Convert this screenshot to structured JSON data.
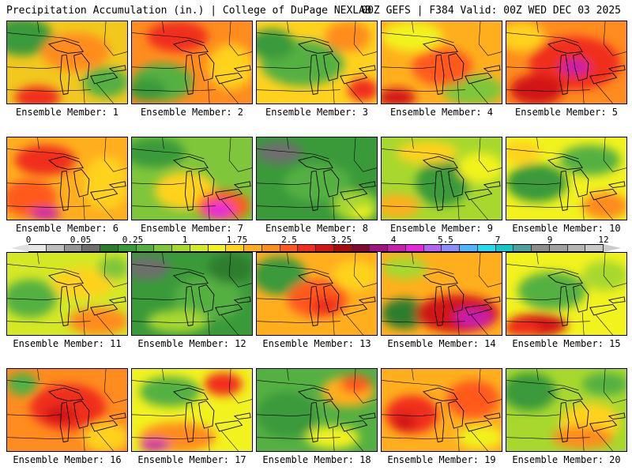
{
  "header": {
    "left_title": "Precipitation Accumulation (in.) | College of DuPage NEXLAB",
    "right_title": "00Z GEFS | F384 Valid: 00Z WED DEC 03 2025"
  },
  "colorbar": {
    "labels": [
      "0",
      "0.05",
      "0.25",
      "1",
      "1.75",
      "2.5",
      "3.25",
      "4",
      "5.5",
      "7",
      "9",
      "12"
    ],
    "colors": [
      "#e6e6e6",
      "#bdbdbd",
      "#969696",
      "#6e6e6e",
      "#2d7d2d",
      "#3a9a3a",
      "#55b043",
      "#7fc63a",
      "#a8d82e",
      "#d4e826",
      "#f2f21e",
      "#ffd21e",
      "#ffaf1e",
      "#ff8c1e",
      "#ff5a1e",
      "#f02d1e",
      "#d21414",
      "#aa0a0a",
      "#820a32",
      "#a0147d",
      "#c81eaf",
      "#e628dc",
      "#b464f0",
      "#8c8cfa",
      "#50b4ff",
      "#28dcf0",
      "#14c8c8",
      "#50a0a0",
      "#8c8c8c",
      "#a0a0a0",
      "#b4b4b4",
      "#c8c8c8"
    ]
  },
  "panels": [
    {
      "label": "Ensemble Member: 1",
      "base": "#f2c81e",
      "blobs": [
        [
          "#3a9a3a",
          20,
          20,
          40,
          25
        ],
        [
          "#55b043",
          130,
          80,
          30,
          20
        ],
        [
          "#ff8c1e",
          90,
          40,
          45,
          25
        ],
        [
          "#f02d1e",
          40,
          100,
          30,
          15
        ]
      ]
    },
    {
      "label": "Ensemble Member: 2",
      "base": "#ff8c1e",
      "blobs": [
        [
          "#55b043",
          40,
          80,
          40,
          25
        ],
        [
          "#3a9a3a",
          20,
          90,
          25,
          15
        ],
        [
          "#f02d1e",
          60,
          20,
          40,
          20
        ],
        [
          "#ffd21e",
          130,
          60,
          30,
          30
        ]
      ]
    },
    {
      "label": "Ensemble Member: 3",
      "base": "#ffd21e",
      "blobs": [
        [
          "#55b043",
          60,
          55,
          55,
          30
        ],
        [
          "#3a9a3a",
          20,
          30,
          30,
          20
        ],
        [
          "#ff8c1e",
          120,
          20,
          30,
          20
        ],
        [
          "#f02d1e",
          140,
          90,
          20,
          15
        ]
      ]
    },
    {
      "label": "Ensemble Member: 4",
      "base": "#ffaf1e",
      "blobs": [
        [
          "#7fc63a",
          120,
          90,
          40,
          20
        ],
        [
          "#f2f21e",
          40,
          20,
          40,
          20
        ],
        [
          "#ff5a1e",
          80,
          60,
          40,
          25
        ],
        [
          "#d21414",
          20,
          100,
          25,
          12
        ]
      ]
    },
    {
      "label": "Ensemble Member: 5",
      "base": "#ff8c1e",
      "blobs": [
        [
          "#f02d1e",
          90,
          55,
          60,
          35
        ],
        [
          "#c81eaf",
          90,
          60,
          20,
          10
        ],
        [
          "#d21414",
          40,
          90,
          35,
          20
        ],
        [
          "#ffd21e",
          20,
          20,
          30,
          20
        ]
      ]
    },
    {
      "label": "Ensemble Member: 6",
      "base": "#ffaf1e",
      "blobs": [
        [
          "#f02d1e",
          50,
          30,
          40,
          20
        ],
        [
          "#ff5a1e",
          30,
          80,
          35,
          25
        ],
        [
          "#c81eaf",
          50,
          100,
          20,
          8
        ],
        [
          "#ffd21e",
          130,
          60,
          30,
          35
        ]
      ]
    },
    {
      "label": "Ensemble Member: 7",
      "base": "#7fc63a",
      "blobs": [
        [
          "#3a9a3a",
          30,
          20,
          40,
          20
        ],
        [
          "#ffd21e",
          70,
          70,
          40,
          25
        ],
        [
          "#ff5a1e",
          120,
          90,
          35,
          20
        ],
        [
          "#e628dc",
          115,
          95,
          20,
          10
        ]
      ]
    },
    {
      "label": "Ensemble Member: 8",
      "base": "#3a9a3a",
      "blobs": [
        [
          "#6e6e6e",
          30,
          20,
          30,
          15
        ],
        [
          "#55b043",
          80,
          60,
          45,
          25
        ],
        [
          "#a8d82e",
          130,
          90,
          30,
          20
        ],
        [
          "#f2f21e",
          140,
          100,
          15,
          8
        ]
      ]
    },
    {
      "label": "Ensemble Member: 9",
      "base": "#a8d82e",
      "blobs": [
        [
          "#3a9a3a",
          80,
          60,
          35,
          30
        ],
        [
          "#ffd21e",
          60,
          20,
          40,
          15
        ],
        [
          "#ffaf1e",
          20,
          90,
          30,
          15
        ],
        [
          "#f2f21e",
          130,
          40,
          30,
          20
        ]
      ]
    },
    {
      "label": "Ensemble Member: 10",
      "base": "#f2f21e",
      "blobs": [
        [
          "#3a9a3a",
          40,
          60,
          40,
          25
        ],
        [
          "#55b043",
          110,
          30,
          40,
          20
        ],
        [
          "#ff8c1e",
          130,
          90,
          30,
          18
        ],
        [
          "#ffd21e",
          20,
          20,
          25,
          15
        ]
      ]
    },
    {
      "label": "Ensemble Member: 11",
      "base": "#d4e826",
      "blobs": [
        [
          "#55b043",
          30,
          60,
          35,
          25
        ],
        [
          "#ffd21e",
          100,
          40,
          40,
          20
        ],
        [
          "#ff8c1e",
          120,
          90,
          40,
          18
        ],
        [
          "#7fc63a",
          140,
          20,
          20,
          15
        ]
      ]
    },
    {
      "label": "Ensemble Member: 12",
      "base": "#3a9a3a",
      "blobs": [
        [
          "#6e6e6e",
          20,
          20,
          30,
          15
        ],
        [
          "#55b043",
          100,
          60,
          45,
          30
        ],
        [
          "#a8d82e",
          60,
          90,
          40,
          15
        ],
        [
          "#2d7d2d",
          130,
          20,
          30,
          20
        ]
      ]
    },
    {
      "label": "Ensemble Member: 13",
      "base": "#ffaf1e",
      "blobs": [
        [
          "#3a9a3a",
          30,
          30,
          35,
          25
        ],
        [
          "#ff5a1e",
          80,
          60,
          40,
          25
        ],
        [
          "#f02d1e",
          90,
          70,
          20,
          12
        ],
        [
          "#ffd21e",
          130,
          30,
          30,
          20
        ]
      ]
    },
    {
      "label": "Ensemble Member: 14",
      "base": "#ffaf1e",
      "blobs": [
        [
          "#2d7d2d",
          30,
          80,
          30,
          20
        ],
        [
          "#d21414",
          100,
          80,
          55,
          25
        ],
        [
          "#c81eaf",
          120,
          85,
          25,
          12
        ],
        [
          "#a8d82e",
          30,
          20,
          30,
          15
        ]
      ]
    },
    {
      "label": "Ensemble Member: 15",
      "base": "#f2f21e",
      "blobs": [
        [
          "#55b043",
          60,
          50,
          45,
          25
        ],
        [
          "#d21414",
          40,
          95,
          40,
          15
        ],
        [
          "#f02d1e",
          20,
          100,
          25,
          10
        ],
        [
          "#a8d82e",
          130,
          30,
          30,
          20
        ]
      ]
    },
    {
      "label": "Ensemble Member: 16",
      "base": "#ff8c1e",
      "blobs": [
        [
          "#f02d1e",
          80,
          50,
          50,
          30
        ],
        [
          "#d21414",
          70,
          60,
          20,
          12
        ],
        [
          "#ffd21e",
          130,
          90,
          30,
          20
        ],
        [
          "#55b043",
          20,
          20,
          20,
          15
        ]
      ]
    },
    {
      "label": "Ensemble Member: 17",
      "base": "#f2f21e",
      "blobs": [
        [
          "#55b043",
          50,
          30,
          40,
          20
        ],
        [
          "#ff8c1e",
          60,
          90,
          50,
          20
        ],
        [
          "#f02d1e",
          120,
          20,
          25,
          15
        ],
        [
          "#c81eaf",
          30,
          100,
          20,
          8
        ]
      ]
    },
    {
      "label": "Ensemble Member: 18",
      "base": "#55b043",
      "blobs": [
        [
          "#3a9a3a",
          40,
          60,
          40,
          30
        ],
        [
          "#ffaf1e",
          120,
          30,
          35,
          20
        ],
        [
          "#ff5a1e",
          130,
          20,
          20,
          12
        ],
        [
          "#f2f21e",
          100,
          90,
          35,
          15
        ]
      ]
    },
    {
      "label": "Ensemble Member: 19",
      "base": "#ffaf1e",
      "blobs": [
        [
          "#f02d1e",
          40,
          60,
          35,
          25
        ],
        [
          "#d21414",
          30,
          70,
          15,
          12
        ],
        [
          "#ff5a1e",
          120,
          40,
          35,
          25
        ],
        [
          "#f2f21e",
          130,
          90,
          30,
          15
        ]
      ]
    },
    {
      "label": "Ensemble Member: 20",
      "base": "#a8d82e",
      "blobs": [
        [
          "#3a9a3a",
          30,
          30,
          35,
          25
        ],
        [
          "#ffd21e",
          110,
          70,
          40,
          25
        ],
        [
          "#ff8c1e",
          100,
          90,
          40,
          15
        ],
        [
          "#55b043",
          130,
          20,
          30,
          15
        ]
      ]
    }
  ]
}
